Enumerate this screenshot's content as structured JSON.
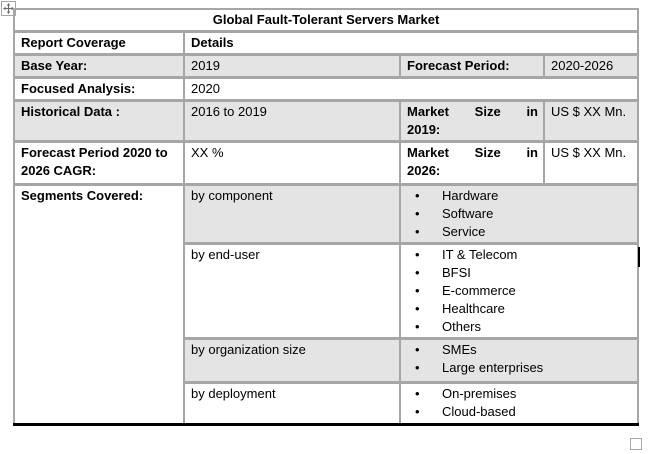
{
  "title": "Global Fault-Tolerant Servers Market",
  "colors": {
    "row_shade": "#e4e4e4",
    "table_border": "#a6a6a6",
    "bottom_border": "#000000",
    "caret": "#000000"
  },
  "icons": {
    "bullet": "•",
    "move_handle": "four-way-arrow-icon",
    "resize_handle": "square-resize-icon"
  },
  "header": {
    "col1": "Report Coverage",
    "col2": "Details"
  },
  "rows": {
    "base_year": {
      "label": "Base Year:",
      "value": "2019"
    },
    "forecast_period": {
      "label": "Forecast Period:",
      "value": "2020-2026"
    },
    "focused_analysis": {
      "label": "Focused Analysis:",
      "value": "2020"
    },
    "historical_data": {
      "label": "Historical Data :",
      "value": "2016 to 2019"
    },
    "market_size_2019": {
      "label_line1_words": [
        "Market",
        "Size",
        "in"
      ],
      "label_line2": "2019:",
      "value": "US $ XX Mn."
    },
    "forecast_cagr": {
      "label": "Forecast Period 2020 to 2026 CAGR:",
      "value": "XX %"
    },
    "market_size_2026": {
      "label_line1_words": [
        "Market",
        "Size",
        "in"
      ],
      "label_line2": "2026:",
      "value": "US $ XX Mn."
    },
    "segments_label": "Segments Covered:"
  },
  "segments": [
    {
      "label": "by component",
      "items": [
        "Hardware",
        "Software",
        "Service"
      ]
    },
    {
      "label": "by end-user",
      "items": [
        "IT & Telecom",
        "BFSI",
        "E-commerce",
        "Healthcare",
        "Others"
      ]
    },
    {
      "label": "by organization size",
      "items": [
        "SMEs",
        "Large enterprises"
      ]
    },
    {
      "label": "by deployment",
      "items": [
        "On-premises",
        "Cloud-based"
      ]
    }
  ]
}
